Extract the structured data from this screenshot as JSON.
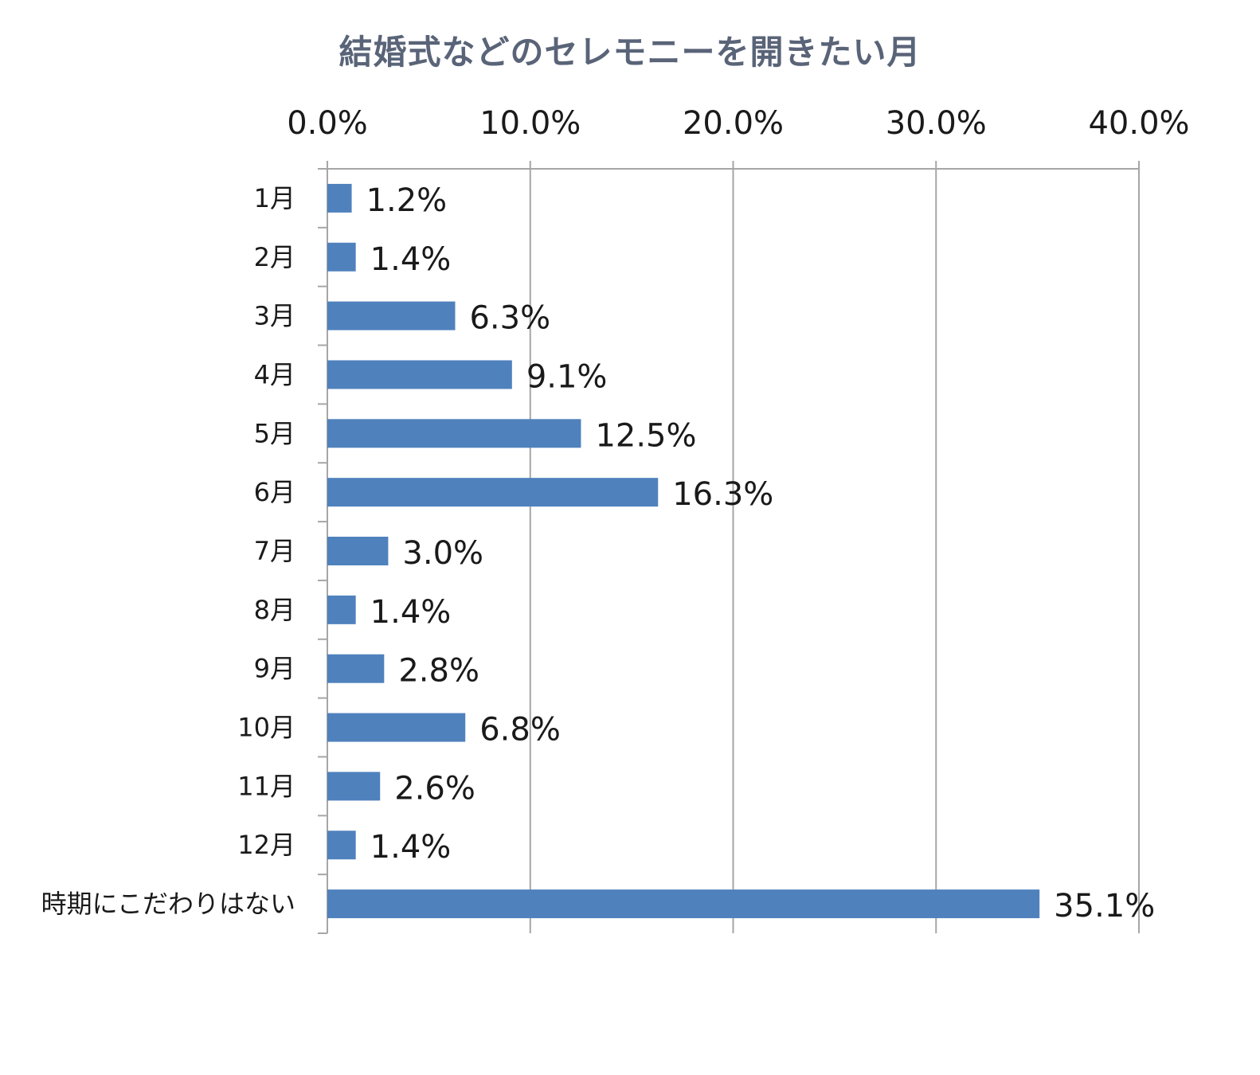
{
  "chart_data": {
    "type": "bar",
    "orientation": "horizontal",
    "title": "結婚式などのセレモニーを開きたい月",
    "categories": [
      "1月",
      "2月",
      "3月",
      "4月",
      "5月",
      "6月",
      "7月",
      "8月",
      "9月",
      "10月",
      "11月",
      "12月",
      "時期にこだわりはない"
    ],
    "values": [
      1.2,
      1.4,
      6.3,
      9.1,
      12.5,
      16.3,
      3.0,
      1.4,
      2.8,
      6.8,
      2.6,
      1.4,
      35.1
    ],
    "data_labels": [
      "1.2%",
      "1.4%",
      "6.3%",
      "9.1%",
      "12.5%",
      "16.3%",
      "3.0%",
      "1.4%",
      "2.8%",
      "6.8%",
      "2.6%",
      "1.4%",
      "35.1%"
    ],
    "xlim": [
      0,
      40
    ],
    "x_ticks": [
      0,
      10,
      20,
      30,
      40
    ],
    "x_tick_labels": [
      "0.0%",
      "10.0%",
      "20.0%",
      "30.0%",
      "40.0%"
    ],
    "x_axis_position": "top",
    "grid": "vertical",
    "legend": "none",
    "bar_color": "#4f81bd",
    "grid_color": "#a6a6a6"
  }
}
